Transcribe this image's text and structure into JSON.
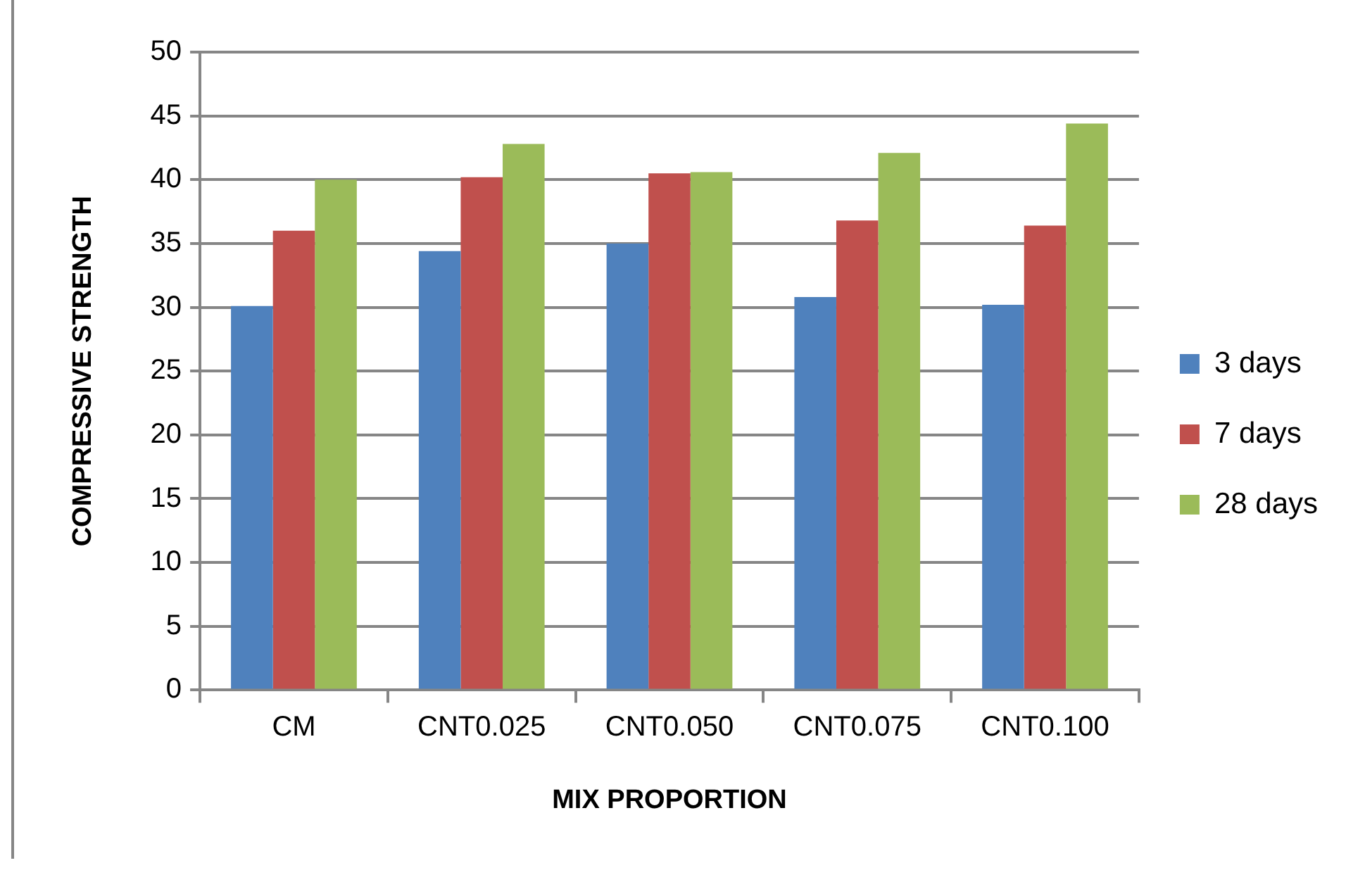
{
  "chart_data": {
    "type": "bar",
    "xlabel": "MIX PROPORTION",
    "ylabel": "COMPRESSIVE STRENGTH",
    "categories": [
      "CM",
      "CNT0.025",
      "CNT0.050",
      "CNT0.075",
      "CNT0.100"
    ],
    "series": [
      {
        "name": "3 days",
        "color": "#4f81bd",
        "values": [
          30.1,
          34.4,
          35.0,
          30.8,
          30.2
        ]
      },
      {
        "name": "7 days",
        "color": "#c0504d",
        "values": [
          36.0,
          40.2,
          40.5,
          36.8,
          36.4
        ]
      },
      {
        "name": "28 days",
        "color": "#9bbb59",
        "values": [
          40.0,
          42.8,
          40.6,
          42.1,
          44.4
        ]
      }
    ],
    "ylim": [
      0,
      50
    ],
    "yticks": [
      0,
      5,
      10,
      15,
      20,
      25,
      30,
      35,
      40,
      45,
      50
    ],
    "grid": "y",
    "legend": "right"
  }
}
